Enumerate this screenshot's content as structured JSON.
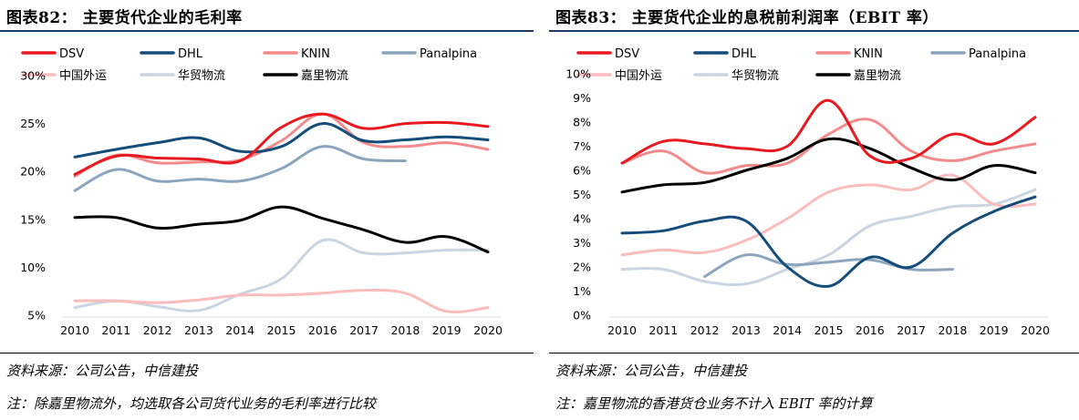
{
  "figures": [
    {
      "title": "图表82：  主要货代企业的毛利率",
      "source": "资料来源：公司公告，中信建投",
      "note": "注：除嘉里物流外，均选取各公司货代业务的毛利率进行比较"
    },
    {
      "title": "图表83：  主要货代企业的息税前利润率（EBIT 率）",
      "source": "资料来源：公司公告，中信建投",
      "note": "注：嘉里物流的香港货仓业务不计入 EBIT 率的计算"
    }
  ],
  "chart_data": [
    {
      "type": "line",
      "title": "",
      "xlabel": "",
      "ylabel": "",
      "categories": [
        "2010",
        "2011",
        "2012",
        "2013",
        "2014",
        "2015",
        "2016",
        "2017",
        "2018",
        "2019",
        "2020"
      ],
      "ylim": [
        5,
        30
      ],
      "yticks": [
        5,
        10,
        15,
        20,
        25,
        30
      ],
      "ytick_labels": [
        "5%",
        "10%",
        "15%",
        "20%",
        "25%",
        "30%"
      ],
      "grid": false,
      "legend": "top, 4 columns",
      "series": [
        {
          "name": "DSV",
          "color": "#e8191f",
          "values": [
            19.7,
            21.6,
            21.4,
            21.3,
            21.1,
            24.6,
            26.0,
            24.5,
            25.0,
            25.1,
            24.7
          ]
        },
        {
          "name": "DHL",
          "color": "#144d7a",
          "values": [
            21.5,
            22.3,
            23.0,
            23.5,
            22.1,
            22.6,
            25.0,
            23.2,
            23.3,
            23.6,
            23.3
          ]
        },
        {
          "name": "KNIN",
          "color": "#f38b8b",
          "values": [
            19.5,
            21.7,
            20.9,
            21.0,
            21.2,
            23.2,
            26.0,
            23.0,
            22.6,
            23.0,
            22.3
          ]
        },
        {
          "name": "Panalpina",
          "color": "#8aa5bd",
          "values": [
            18.0,
            20.2,
            19.0,
            19.2,
            19.0,
            20.3,
            22.6,
            21.3,
            21.1,
            null,
            null
          ]
        },
        {
          "name": "中国外运",
          "color": "#fbbcbc",
          "values": [
            6.5,
            6.5,
            6.3,
            6.6,
            7.1,
            7.1,
            7.3,
            7.6,
            7.3,
            5.4,
            5.8
          ]
        },
        {
          "name": "华贸物流",
          "color": "#c9d5e0",
          "values": [
            5.8,
            6.5,
            5.9,
            5.5,
            7.2,
            8.8,
            12.8,
            11.5,
            11.5,
            11.8,
            11.8
          ]
        },
        {
          "name": "嘉里物流",
          "color": "#000000",
          "values": [
            15.2,
            15.2,
            14.1,
            14.5,
            14.9,
            16.3,
            15.1,
            13.9,
            12.6,
            13.2,
            11.6
          ]
        }
      ]
    },
    {
      "type": "line",
      "title": "",
      "xlabel": "",
      "ylabel": "",
      "categories": [
        "2010",
        "2011",
        "2012",
        "2013",
        "2014",
        "2015",
        "2016",
        "2017",
        "2018",
        "2019",
        "2020"
      ],
      "ylim": [
        0,
        10
      ],
      "yticks": [
        0,
        1,
        2,
        3,
        4,
        5,
        6,
        7,
        8,
        9,
        10
      ],
      "ytick_labels": [
        "0%",
        "1%",
        "2%",
        "3%",
        "4%",
        "5%",
        "6%",
        "7%",
        "8%",
        "9%",
        "10%"
      ],
      "grid": false,
      "legend": "top, 4 columns",
      "series": [
        {
          "name": "DSV",
          "color": "#e8191f",
          "values": [
            6.3,
            7.2,
            7.1,
            6.9,
            7.0,
            8.9,
            6.6,
            6.5,
            7.5,
            7.1,
            8.2
          ]
        },
        {
          "name": "DHL",
          "color": "#144d7a",
          "values": [
            3.4,
            3.5,
            3.9,
            3.9,
            2.0,
            1.2,
            2.4,
            2.0,
            3.4,
            4.3,
            4.9
          ]
        },
        {
          "name": "KNIN",
          "color": "#f38b8b",
          "values": [
            6.3,
            6.8,
            5.9,
            6.2,
            6.3,
            7.5,
            8.1,
            6.8,
            6.4,
            6.8,
            7.1
          ]
        },
        {
          "name": "Panalpina",
          "color": "#8aa5bd",
          "values": [
            null,
            null,
            1.6,
            2.5,
            2.1,
            2.2,
            2.3,
            1.9,
            1.9,
            null,
            null
          ]
        },
        {
          "name": "中国外运",
          "color": "#fbbcbc",
          "values": [
            2.5,
            2.7,
            2.6,
            3.1,
            4.0,
            5.1,
            5.4,
            5.2,
            5.8,
            4.6,
            4.6
          ]
        },
        {
          "name": "华贸物流",
          "color": "#c9d5e0",
          "values": [
            1.9,
            1.9,
            1.4,
            1.3,
            1.9,
            2.5,
            3.7,
            4.1,
            4.5,
            4.6,
            5.2
          ]
        },
        {
          "name": "嘉里物流",
          "color": "#000000",
          "values": [
            5.1,
            5.4,
            5.5,
            6.0,
            6.5,
            7.3,
            6.9,
            6.1,
            5.6,
            6.2,
            5.9
          ]
        }
      ]
    }
  ]
}
